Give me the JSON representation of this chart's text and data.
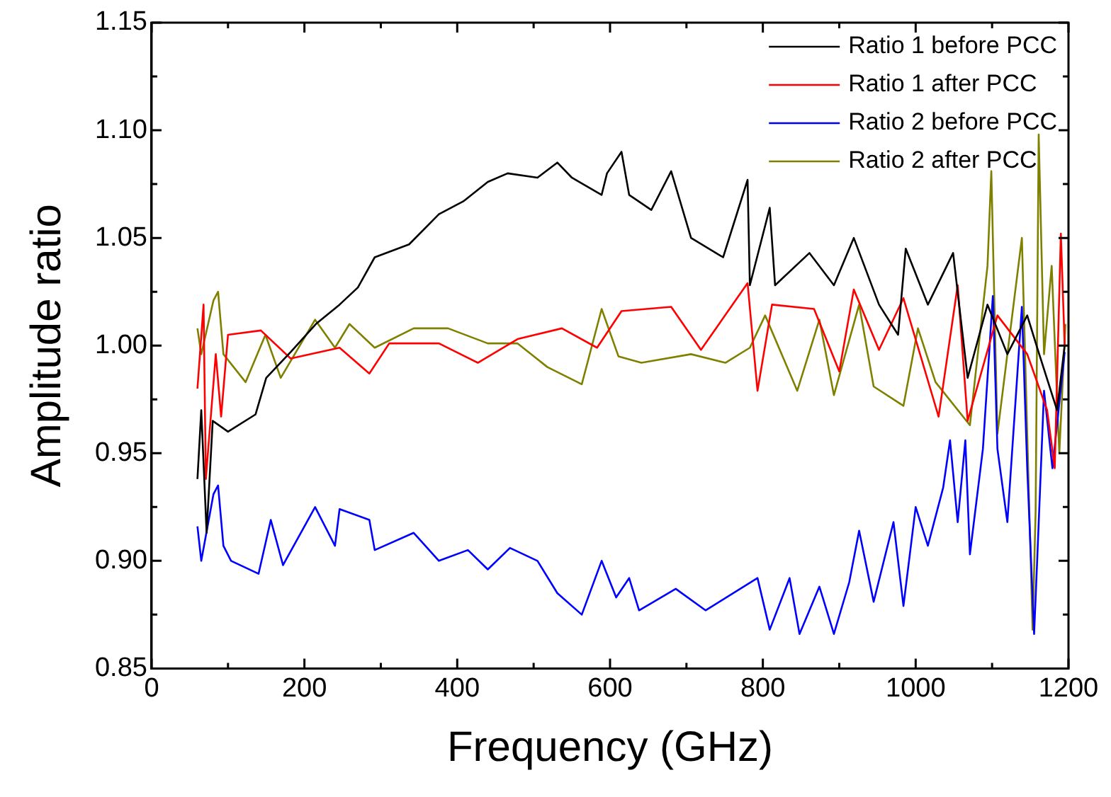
{
  "chart_data": {
    "type": "line",
    "xlabel": "Frequency (GHz)",
    "ylabel": "Amplitude ratio",
    "xlim": [
      0,
      1200
    ],
    "ylim": [
      0.85,
      1.15
    ],
    "xticks": [
      0,
      {
        "value": 100,
        "label": null
      },
      200,
      {
        "value": 300,
        "label": null
      },
      400,
      {
        "value": 500,
        "label": null
      },
      600,
      {
        "value": 700,
        "label": null
      },
      800,
      {
        "value": 900,
        "label": null
      },
      1000,
      {
        "value": 1100,
        "label": null
      },
      1200
    ],
    "yticks": [
      0.85,
      {
        "value": 0.875,
        "label": null
      },
      "0.90",
      {
        "value": 0.925,
        "label": null
      },
      0.95,
      {
        "value": 0.975,
        "label": null
      },
      "1.00",
      {
        "value": 1.025,
        "label": null
      },
      1.05,
      {
        "value": 1.075,
        "label": null
      },
      "1.10",
      {
        "value": 1.125,
        "label": null
      },
      1.15
    ],
    "grid": false,
    "legend": "top right",
    "marker": "none",
    "line_style": "solid",
    "series": [
      {
        "name": "Ratio 1 before PCC",
        "color": "#000000",
        "x": [
          60,
          65,
          72,
          80,
          100,
          136,
          150,
          182,
          215,
          246,
          270,
          292,
          337,
          376,
          408,
          440,
          466,
          505,
          531,
          550,
          589,
          596,
          615,
          625,
          654,
          680,
          706,
          748,
          780,
          783,
          809,
          816,
          861,
          893,
          919,
          952,
          977,
          987,
          1016,
          1049,
          1068,
          1094,
          1120,
          1146,
          1159,
          1185,
          1195
        ],
        "values": [
          0.938,
          0.97,
          0.913,
          0.965,
          0.96,
          0.968,
          0.985,
          0.997,
          1.01,
          1.019,
          1.027,
          1.041,
          1.047,
          1.061,
          1.067,
          1.076,
          1.08,
          1.078,
          1.085,
          1.078,
          1.07,
          1.08,
          1.09,
          1.07,
          1.063,
          1.081,
          1.05,
          1.041,
          1.077,
          1.028,
          1.064,
          1.028,
          1.043,
          1.028,
          1.05,
          1.019,
          1.005,
          1.045,
          1.019,
          1.043,
          0.985,
          1.019,
          0.996,
          1.014,
          0.999,
          0.97,
          1.0
        ]
      },
      {
        "name": "Ratio 1 after PCC",
        "color": "#ff0000",
        "x": [
          60,
          68,
          71,
          84,
          91,
          100,
          143,
          182,
          246,
          285,
          311,
          376,
          427,
          479,
          537,
          583,
          615,
          680,
          719,
          780,
          793,
          812,
          867,
          900,
          919,
          952,
          984,
          1030,
          1055,
          1068,
          1107,
          1146,
          1172,
          1182,
          1190,
          1195
        ],
        "values": [
          0.98,
          1.019,
          0.938,
          0.996,
          0.967,
          1.005,
          1.007,
          0.994,
          0.999,
          0.987,
          1.001,
          1.001,
          0.992,
          1.003,
          1.008,
          0.999,
          1.016,
          1.018,
          0.998,
          1.029,
          0.979,
          1.019,
          1.017,
          0.988,
          1.026,
          0.998,
          1.022,
          0.967,
          1.028,
          0.965,
          1.014,
          0.996,
          0.97,
          0.943,
          1.052,
          1.0
        ]
      },
      {
        "name": "Ratio 2 before PCC",
        "color": "#0000ff",
        "x": [
          60,
          65,
          81,
          87,
          94,
          104,
          140,
          156,
          172,
          214,
          240,
          246,
          285,
          292,
          343,
          376,
          414,
          440,
          469,
          505,
          531,
          563,
          589,
          608,
          625,
          638,
          686,
          725,
          793,
          809,
          835,
          848,
          874,
          893,
          913,
          926,
          945,
          971,
          984,
          1000,
          1016,
          1036,
          1045,
          1055,
          1065,
          1071,
          1088,
          1101,
          1107,
          1120,
          1139,
          1146,
          1155,
          1159,
          1168,
          1179,
          1195
        ],
        "values": [
          0.916,
          0.9,
          0.931,
          0.935,
          0.907,
          0.9,
          0.894,
          0.919,
          0.898,
          0.925,
          0.907,
          0.924,
          0.919,
          0.905,
          0.913,
          0.9,
          0.905,
          0.896,
          0.906,
          0.9,
          0.885,
          0.875,
          0.9,
          0.883,
          0.892,
          0.877,
          0.887,
          0.877,
          0.892,
          0.868,
          0.892,
          0.866,
          0.888,
          0.866,
          0.89,
          0.914,
          0.881,
          0.918,
          0.879,
          0.925,
          0.907,
          0.934,
          0.956,
          0.918,
          0.956,
          0.903,
          0.952,
          1.023,
          0.952,
          0.918,
          1.018,
          0.943,
          0.866,
          0.9,
          0.979,
          0.943,
          0.997
        ]
      },
      {
        "name": "Ratio 2 after PCC",
        "color": "#808000",
        "x": [
          60,
          65,
          81,
          87,
          94,
          123,
          149,
          169,
          214,
          240,
          259,
          292,
          343,
          388,
          440,
          479,
          518,
          563,
          589,
          611,
          641,
          706,
          751,
          783,
          803,
          845,
          874,
          893,
          926,
          945,
          984,
          1003,
          1026,
          1071,
          1094,
          1099,
          1107,
          1139,
          1153,
          1157,
          1161,
          1168,
          1178,
          1188,
          1196
        ],
        "values": [
          1.008,
          0.996,
          1.021,
          1.025,
          0.996,
          0.983,
          1.005,
          0.985,
          1.012,
          0.999,
          1.01,
          0.999,
          1.008,
          1.008,
          1.001,
          1.001,
          0.99,
          0.982,
          1.017,
          0.995,
          0.992,
          0.996,
          0.992,
          0.999,
          1.014,
          0.979,
          1.012,
          0.977,
          1.019,
          0.981,
          0.972,
          1.008,
          0.983,
          0.963,
          1.037,
          1.081,
          0.959,
          1.05,
          0.868,
          0.923,
          1.098,
          0.996,
          1.037,
          0.95,
          1.01
        ]
      }
    ]
  }
}
